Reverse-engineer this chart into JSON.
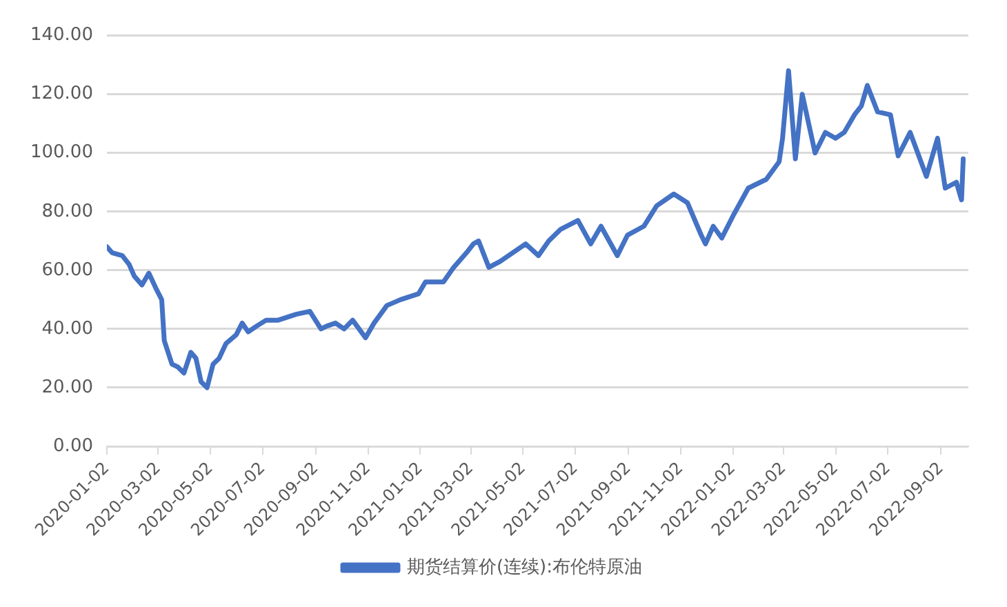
{
  "chart_data": {
    "type": "line",
    "xlim": [
      "2020-01-02",
      "2022-10-04"
    ],
    "xticks": [
      "2020-01-02",
      "2020-03-02",
      "2020-05-02",
      "2020-07-02",
      "2020-09-02",
      "2020-11-02",
      "2021-01-02",
      "2021-03-02",
      "2021-05-02",
      "2021-07-02",
      "2021-09-02",
      "2021-11-02",
      "2022-01-02",
      "2022-03-02",
      "2022-05-02",
      "2022-07-02",
      "2022-09-02"
    ],
    "ylim": [
      0,
      140
    ],
    "yticks": [
      {
        "value": 0,
        "label": "0.00"
      },
      {
        "value": 20,
        "label": "20.00"
      },
      {
        "value": 40,
        "label": "40.00"
      },
      {
        "value": 60,
        "label": "60.00"
      },
      {
        "value": 80,
        "label": "80.00"
      },
      {
        "value": 100,
        "label": "100.00"
      },
      {
        "value": 120,
        "label": "120.00"
      },
      {
        "value": 140,
        "label": "140.00"
      }
    ],
    "grid": "y",
    "legend": "bottom",
    "series": [
      {
        "name": "期货结算价(连续):布伦特原油",
        "color": "#4472c4",
        "x": [
          "2020-01-02",
          "2020-01-08",
          "2020-01-20",
          "2020-01-28",
          "2020-02-03",
          "2020-02-12",
          "2020-02-20",
          "2020-02-28",
          "2020-03-06",
          "2020-03-09",
          "2020-03-18",
          "2020-03-25",
          "2020-04-01",
          "2020-04-09",
          "2020-04-15",
          "2020-04-21",
          "2020-04-28",
          "2020-05-05",
          "2020-05-12",
          "2020-05-20",
          "2020-06-01",
          "2020-06-08",
          "2020-06-15",
          "2020-06-25",
          "2020-07-06",
          "2020-07-20",
          "2020-08-10",
          "2020-08-26",
          "2020-09-08",
          "2020-09-15",
          "2020-09-25",
          "2020-10-05",
          "2020-10-15",
          "2020-10-30",
          "2020-11-09",
          "2020-11-24",
          "2020-12-10",
          "2020-12-31",
          "2021-01-08",
          "2021-01-29",
          "2021-02-10",
          "2021-02-25",
          "2021-03-05",
          "2021-03-11",
          "2021-03-23",
          "2021-04-05",
          "2021-04-20",
          "2021-05-05",
          "2021-05-20",
          "2021-06-01",
          "2021-06-15",
          "2021-07-05",
          "2021-07-20",
          "2021-08-01",
          "2021-08-20",
          "2021-09-01",
          "2021-09-20",
          "2021-10-05",
          "2021-10-25",
          "2021-11-10",
          "2021-11-26",
          "2021-12-01",
          "2021-12-10",
          "2021-12-20",
          "2022-01-03",
          "2022-01-20",
          "2022-02-10",
          "2022-02-25",
          "2022-03-01",
          "2022-03-08",
          "2022-03-16",
          "2022-03-24",
          "2022-04-08",
          "2022-04-20",
          "2022-05-02",
          "2022-05-12",
          "2022-05-24",
          "2022-06-01",
          "2022-06-08",
          "2022-06-20",
          "2022-07-05",
          "2022-07-14",
          "2022-07-28",
          "2022-08-16",
          "2022-08-29",
          "2022-09-07",
          "2022-09-20",
          "2022-09-26",
          "2022-09-28"
        ],
        "values": [
          68,
          66,
          65,
          62,
          58,
          55,
          59,
          54,
          50,
          36,
          28,
          27,
          25,
          32,
          30,
          22,
          20,
          28,
          30,
          35,
          38,
          42,
          39,
          41,
          43,
          43,
          45,
          46,
          40,
          41,
          42,
          40,
          43,
          37,
          42,
          48,
          50,
          52,
          56,
          56,
          61,
          66,
          69,
          70,
          61,
          63,
          66,
          69,
          65,
          70,
          74,
          77,
          69,
          75,
          65,
          72,
          75,
          82,
          86,
          83,
          72,
          69,
          75,
          71,
          79,
          88,
          91,
          97,
          105,
          128,
          98,
          120,
          100,
          107,
          105,
          107,
          113,
          116,
          123,
          114,
          113,
          99,
          107,
          92,
          105,
          88,
          90,
          84,
          98
        ]
      }
    ]
  }
}
